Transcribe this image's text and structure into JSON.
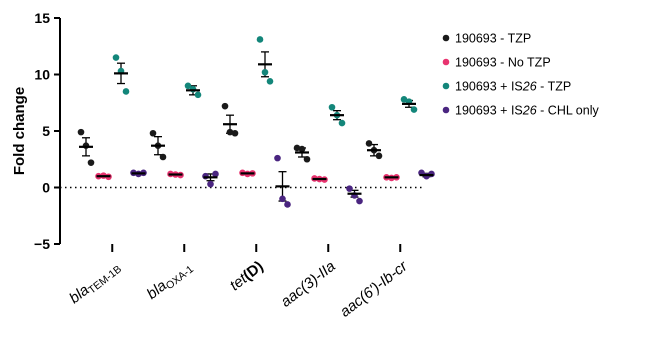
{
  "chart_data": {
    "type": "scatter",
    "title": "",
    "xlabel": "",
    "ylabel": "Fold change",
    "ylim": [
      -5,
      15
    ],
    "yticks": [
      -5,
      0,
      5,
      10,
      15
    ],
    "ytick_labels": [
      "−5",
      "0",
      "5",
      "10",
      "15"
    ],
    "reference_line": {
      "y": 0,
      "style": "dotted"
    },
    "categories": [
      {
        "id": "bla-tem",
        "parts": [
          {
            "t": "bla",
            "italic": true
          },
          {
            "t": "TEM-1B",
            "sub": true
          }
        ]
      },
      {
        "id": "bla-oxa",
        "parts": [
          {
            "t": "bla",
            "italic": true
          },
          {
            "t": "OXA-1",
            "sub": true
          }
        ]
      },
      {
        "id": "tetd",
        "parts": [
          {
            "t": "tet",
            "italic": true
          },
          {
            "t": "(D)",
            "bold": true
          }
        ]
      },
      {
        "id": "aac3",
        "parts": [
          {
            "t": "aac(3)-IIa",
            "italic": true
          }
        ]
      },
      {
        "id": "aac6",
        "parts": [
          {
            "t": "aac(6')-Ib-cr",
            "italic": true
          }
        ]
      }
    ],
    "legend_position": "right",
    "series": [
      {
        "name": "190693 - TZP",
        "color": "#1a1a1a",
        "means": [
          3.6,
          3.7,
          5.6,
          3.1,
          3.3
        ],
        "errors": [
          0.8,
          0.8,
          0.8,
          0.4,
          0.5
        ],
        "points": [
          [
            4.9,
            3.7,
            2.2
          ],
          [
            4.8,
            3.7,
            2.7
          ],
          [
            7.2,
            4.9,
            4.8
          ],
          [
            3.5,
            3.4,
            2.5
          ],
          [
            3.9,
            3.3,
            2.8
          ]
        ]
      },
      {
        "name": "190693 - No TZP",
        "color": "#e8336f",
        "means": [
          1.0,
          1.15,
          1.25,
          0.75,
          0.9
        ],
        "errors": [
          0.05,
          0.05,
          0.08,
          0.04,
          0.03
        ],
        "points": [
          [
            1.0,
            1.05,
            0.95
          ],
          [
            1.2,
            1.15,
            1.1
          ],
          [
            1.3,
            1.2,
            1.25
          ],
          [
            0.8,
            0.75,
            0.7
          ],
          [
            0.9,
            0.85,
            0.9
          ]
        ]
      },
      {
        "name": "190693 + IS26 - TZP",
        "color": "#13867a",
        "means": [
          10.1,
          8.6,
          10.9,
          6.4,
          7.4
        ],
        "errors": [
          0.9,
          0.4,
          1.1,
          0.4,
          0.3
        ],
        "points": [
          [
            11.5,
            10.3,
            8.5
          ],
          [
            9.0,
            8.7,
            8.2
          ],
          [
            13.1,
            10.2,
            9.4
          ],
          [
            7.1,
            6.4,
            5.7
          ],
          [
            7.8,
            7.6,
            6.9
          ]
        ]
      },
      {
        "name": "190693 + IS26 - CHL only",
        "color": "#4a2580",
        "means": [
          1.25,
          0.9,
          0.1,
          -0.55,
          1.1
        ],
        "errors": [
          0.1,
          0.3,
          1.3,
          0.3,
          0.15
        ],
        "points": [
          [
            1.3,
            1.2,
            1.3
          ],
          [
            1.0,
            0.3,
            1.2
          ],
          [
            2.6,
            -1.0,
            -1.5
          ],
          [
            -0.1,
            -0.7,
            -1.2
          ],
          [
            1.3,
            1.0,
            1.2
          ]
        ]
      }
    ],
    "legend": [
      {
        "pre": "190693 - TZP",
        "em": "",
        "post": ""
      },
      {
        "pre": "190693 - No TZP",
        "em": "",
        "post": ""
      },
      {
        "pre": "190693 + IS",
        "em": "26",
        "post": " - TZP"
      },
      {
        "pre": "190693 + IS",
        "em": "26",
        "post": " - CHL only"
      }
    ]
  }
}
